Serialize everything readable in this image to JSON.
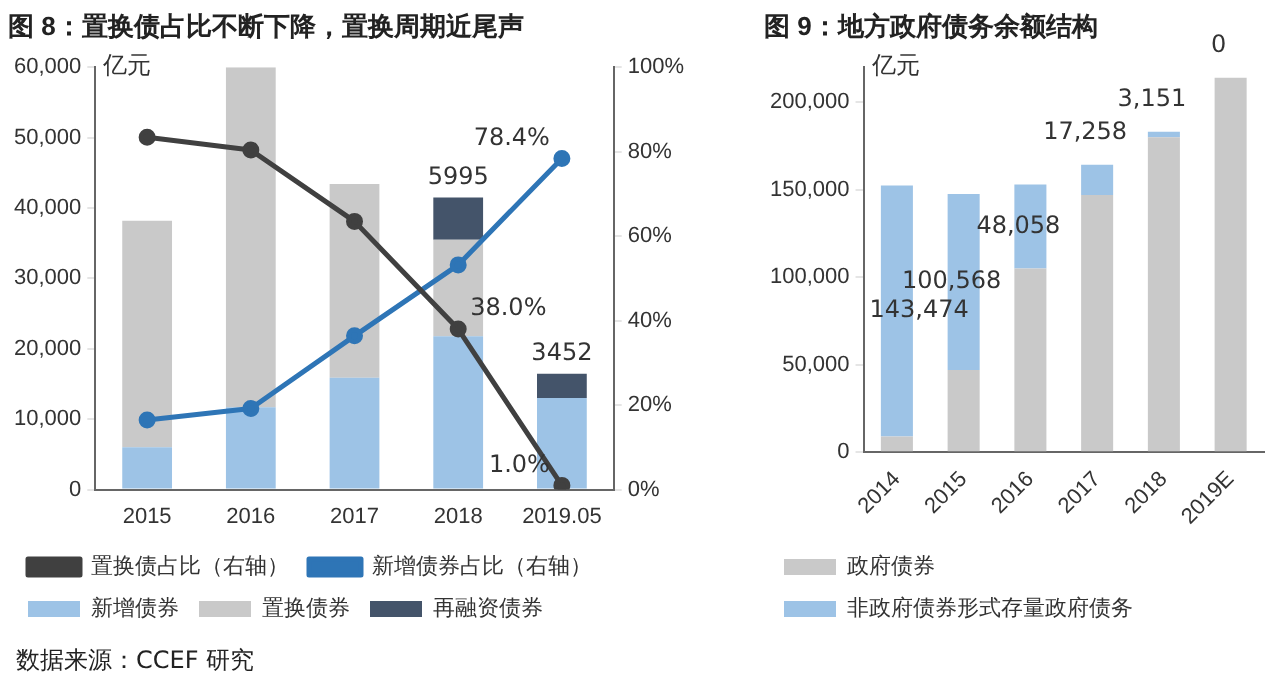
{
  "chart_data": [
    {
      "type": "bar",
      "title": "图 8：置换债占比不断下降，置换周期近尾声",
      "ylabel": "亿元",
      "categories": [
        "2015",
        "2016",
        "2017",
        "2018",
        "2019.05"
      ],
      "stacked": true,
      "legend": "bottom",
      "grid": false,
      "series": [
        {
          "name": "新增债券",
          "color": "#9dc3e6",
          "values": [
            6000,
            11700,
            15900,
            21800,
            13000
          ]
        },
        {
          "name": "置换债券",
          "color": "#c9c9c9",
          "values": [
            32200,
            48300,
            27500,
            13700,
            null
          ]
        },
        {
          "name": "再融资债券",
          "color": "#44546a",
          "values": [
            0,
            0,
            0,
            5995,
            3452
          ],
          "value_labels": [
            null,
            null,
            null,
            "5995",
            "3452"
          ]
        },
        {
          "name": "置换债占比（右轴）",
          "type": "line",
          "axis": "y2",
          "color": "#404040",
          "marker": "circle",
          "values": [
            83.4,
            80.4,
            63.5,
            38.0,
            1.0
          ],
          "value_labels": [
            null,
            null,
            null,
            "38.0%",
            "1.0%"
          ]
        },
        {
          "name": "新增债券占比（右轴）",
          "type": "line",
          "axis": "y2",
          "color": "#2e75b6",
          "marker": "circle",
          "values": [
            16.5,
            19.2,
            36.4,
            53.2,
            78.4
          ],
          "value_labels": [
            null,
            null,
            null,
            null,
            "78.4%"
          ]
        }
      ],
      "ylim": [
        0,
        60000
      ],
      "yticks": [
        0,
        {
          "value": 10000,
          "label": "10,000"
        },
        {
          "value": 20000,
          "label": "20,000"
        },
        {
          "value": 30000,
          "label": "30,000"
        },
        {
          "value": 40000,
          "label": "40,000"
        },
        {
          "value": 50000,
          "label": "50,000"
        },
        {
          "value": 60000,
          "label": "60,000"
        }
      ],
      "y2lim": [
        0,
        100
      ],
      "y2ticks": [
        {
          "value": 0,
          "label": "0%"
        },
        {
          "value": 20,
          "label": "20%"
        },
        {
          "value": 40,
          "label": "40%"
        },
        {
          "value": 60,
          "label": "60%"
        },
        {
          "value": 80,
          "label": "80%"
        },
        {
          "value": 100,
          "label": "100%"
        }
      ],
      "annotations": [
        "数据来源：CCEF 研究"
      ]
    },
    {
      "type": "bar",
      "title": "图 9：地方政府债务余额结构",
      "ylabel": "亿元",
      "categories": [
        "2014",
        "2015",
        "2016",
        "2017",
        "2018",
        "2019E"
      ],
      "stacked": true,
      "legend": "bottom",
      "grid": false,
      "series": [
        {
          "name": "政府债券",
          "color": "#c9c9c9",
          "values": [
            9000,
            47000,
            105000,
            147000,
            180000,
            214000
          ]
        },
        {
          "name": "非政府债券形式存量政府债务",
          "color": "#9dc3e6",
          "values": [
            143474,
            100568,
            48058,
            17258,
            3151,
            0
          ],
          "value_labels": [
            "143,474",
            "100,568",
            "48,058",
            "17,258",
            "3,151",
            "0"
          ]
        }
      ],
      "ylim": [
        0,
        220000
      ],
      "yticks": [
        0,
        {
          "value": 50000,
          "label": "50,000"
        },
        {
          "value": 100000,
          "label": "100,000"
        },
        {
          "value": 150000,
          "label": "150,000"
        },
        {
          "value": 200000,
          "label": "200,000"
        }
      ]
    }
  ]
}
